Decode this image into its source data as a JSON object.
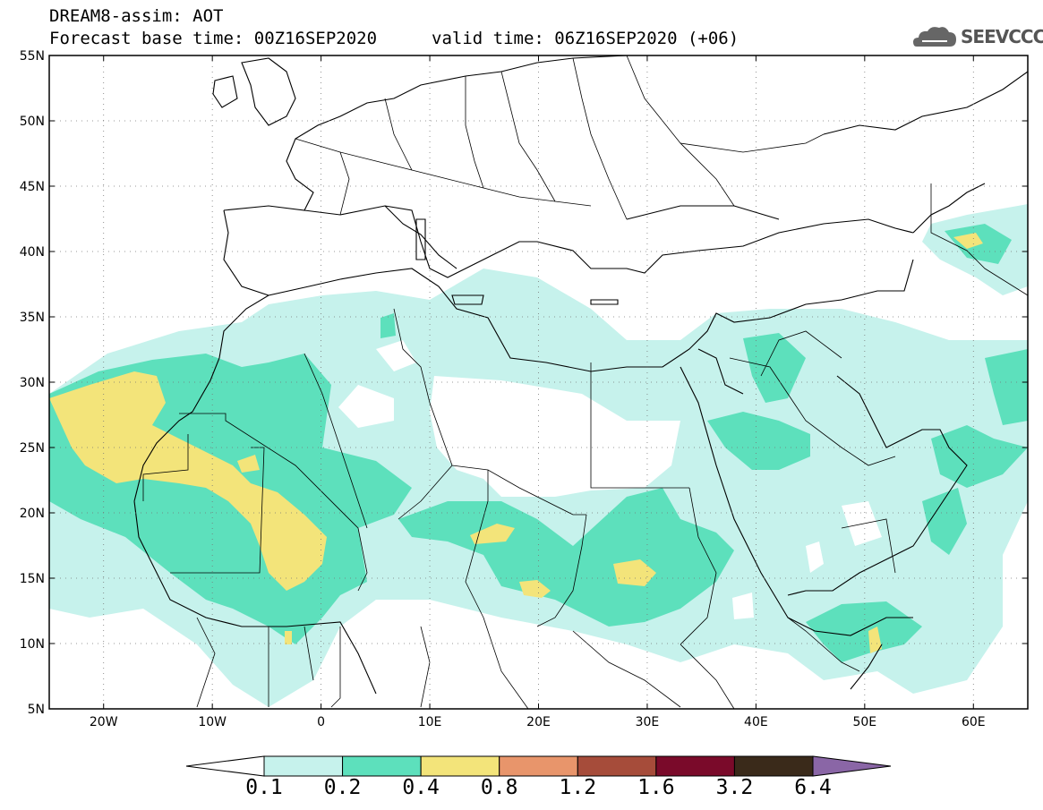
{
  "header": {
    "line1": "DREAM8-assim: AOT",
    "line2_left": "Forecast base time: 00Z16SEP2020",
    "line2_right": "valid time: 06Z16SEP2020 (+06)",
    "logo_text": "SEEVCCC",
    "logo_icon": "cloud-icon"
  },
  "map": {
    "lat_labels": [
      "55N",
      "50N",
      "45N",
      "40N",
      "35N",
      "30N",
      "25N",
      "20N",
      "15N",
      "10N",
      "5N"
    ],
    "lon_labels": [
      "20W",
      "10W",
      "0",
      "10E",
      "20E",
      "30E",
      "40E",
      "50E",
      "60E"
    ],
    "lon_range": [
      -25,
      65
    ],
    "lat_range": [
      5,
      55
    ]
  },
  "colorbar": {
    "labels": [
      "0.1",
      "0.2",
      "0.4",
      "0.8",
      "1.2",
      "1.6",
      "3.2",
      "6.4"
    ],
    "colors": [
      "#c6f2ec",
      "#5de0bc",
      "#f3e47a",
      "#e8956b",
      "#a64c3a",
      "#7a0a2a",
      "#3a2a1a"
    ],
    "extend_low_color": "#ffffff",
    "extend_high_color": "#8a66a6"
  }
}
